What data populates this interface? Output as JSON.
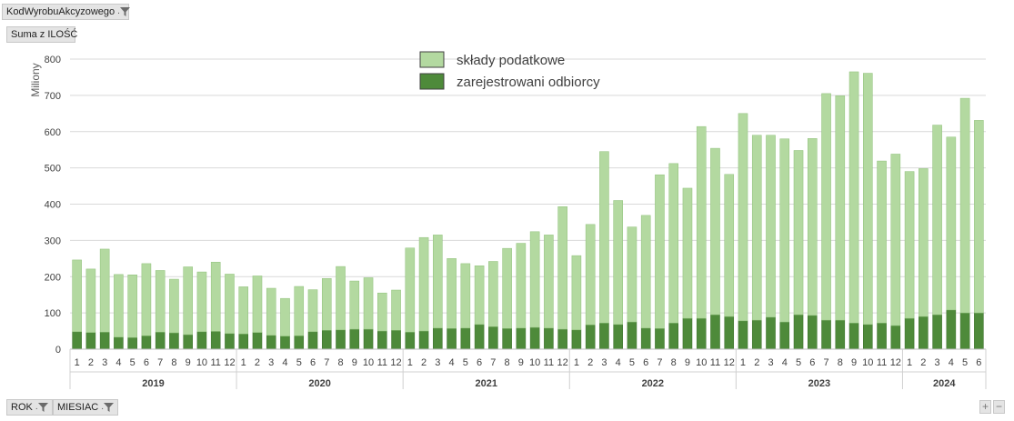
{
  "pivot": {
    "filter_field": "KodWyrobuAkcyzowego",
    "value_field": "Suma z ILOŚĆ",
    "axis_fields": [
      "ROK",
      "MIESIAC"
    ],
    "filter_glyph": ".",
    "zoom_in": "+",
    "zoom_out": "−"
  },
  "colors": {
    "sklady": "#b3d9a0",
    "sklady_dark": "#8fc07a",
    "odbiorcy": "#4e8a3a",
    "odbiorcy_dark": "#3a6e2a",
    "grid": "#d9d9d9"
  },
  "chart_data": {
    "type": "bar",
    "stacked": true,
    "ylabel": "Miliony",
    "ylim": [
      0,
      800
    ],
    "yticks": [
      0,
      100,
      200,
      300,
      400,
      500,
      600,
      700,
      800
    ],
    "grid": true,
    "legend_position": "top-center",
    "groups": [
      {
        "label": "2019",
        "months": [
          "1",
          "2",
          "3",
          "4",
          "5",
          "6",
          "7",
          "8",
          "9",
          "10",
          "11",
          "12"
        ]
      },
      {
        "label": "2020",
        "months": [
          "1",
          "2",
          "3",
          "4",
          "5",
          "6",
          "7",
          "8",
          "9",
          "10",
          "11",
          "12"
        ]
      },
      {
        "label": "2021",
        "months": [
          "1",
          "2",
          "3",
          "4",
          "5",
          "6",
          "7",
          "8",
          "9",
          "10",
          "11",
          "12"
        ]
      },
      {
        "label": "2022",
        "months": [
          "1",
          "2",
          "3",
          "4",
          "5",
          "6",
          "7",
          "8",
          "9",
          "10",
          "11",
          "12"
        ]
      },
      {
        "label": "2023",
        "months": [
          "1",
          "2",
          "3",
          "4",
          "5",
          "6",
          "7",
          "8",
          "9",
          "10",
          "11",
          "12"
        ]
      },
      {
        "label": "2024",
        "months": [
          "1",
          "2",
          "3",
          "4",
          "5",
          "6"
        ]
      }
    ],
    "series": [
      {
        "name": "zarejestrowani odbiorcy",
        "values": [
          48,
          46,
          47,
          33,
          32,
          37,
          47,
          45,
          40,
          48,
          49,
          43,
          42,
          46,
          38,
          36,
          37,
          48,
          52,
          53,
          55,
          55,
          50,
          52,
          47,
          50,
          58,
          57,
          58,
          68,
          62,
          57,
          58,
          60,
          58,
          55,
          53,
          67,
          72,
          68,
          75,
          58,
          57,
          72,
          85,
          85,
          95,
          90,
          78,
          80,
          88,
          75,
          95,
          93,
          80,
          80,
          72,
          68,
          72,
          65,
          85,
          90,
          95,
          108,
          100,
          100
        ]
      },
      {
        "name": "składy podatkowe",
        "values": [
          198,
          175,
          229,
          173,
          173,
          199,
          170,
          148,
          187,
          165,
          191,
          164,
          130,
          156,
          130,
          104,
          136,
          116,
          143,
          175,
          133,
          142,
          105,
          111,
          232,
          258,
          257,
          193,
          178,
          162,
          180,
          221,
          234,
          264,
          257,
          338,
          205,
          277,
          473,
          342,
          262,
          311,
          424,
          440,
          359,
          529,
          459,
          392,
          572,
          510,
          502,
          505,
          453,
          488,
          625,
          619,
          693,
          693,
          447,
          473,
          405,
          408,
          523,
          477,
          592,
          531
        ]
      }
    ]
  }
}
